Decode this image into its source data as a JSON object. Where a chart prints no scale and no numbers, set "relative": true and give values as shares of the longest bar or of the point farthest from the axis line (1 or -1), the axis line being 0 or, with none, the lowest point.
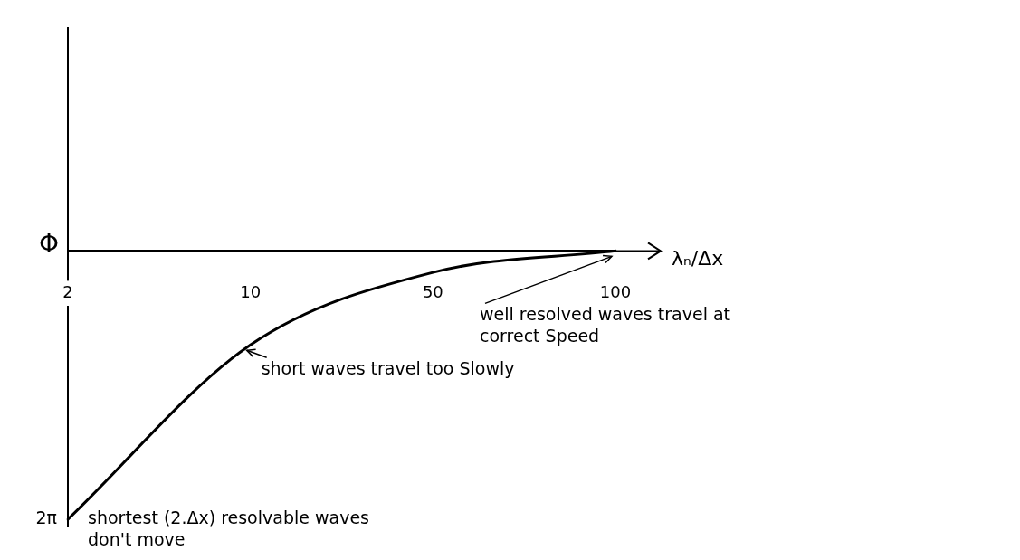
{
  "chart_data": {
    "type": "line",
    "xlabel": "λₙ/Δx",
    "ylabel": "Φ",
    "categories": [
      "2",
      "10",
      "50",
      "100"
    ],
    "values": [
      -1,
      -0.35,
      -0.08,
      0
    ],
    "relative": true,
    "color": "#000000",
    "marker": "none",
    "legend": false,
    "grid": false,
    "annotations": [
      {
        "text": "2π",
        "x": "2",
        "y": -1
      },
      {
        "text": "shortest (2.Δx) resolvable waves don't move",
        "x": "2",
        "y": -1
      },
      {
        "text": "short waves travel too Slowly",
        "x": "10",
        "y": -0.35
      },
      {
        "text": "well resolved waves travel at correct Speed",
        "x": "100",
        "y": 0
      }
    ]
  }
}
